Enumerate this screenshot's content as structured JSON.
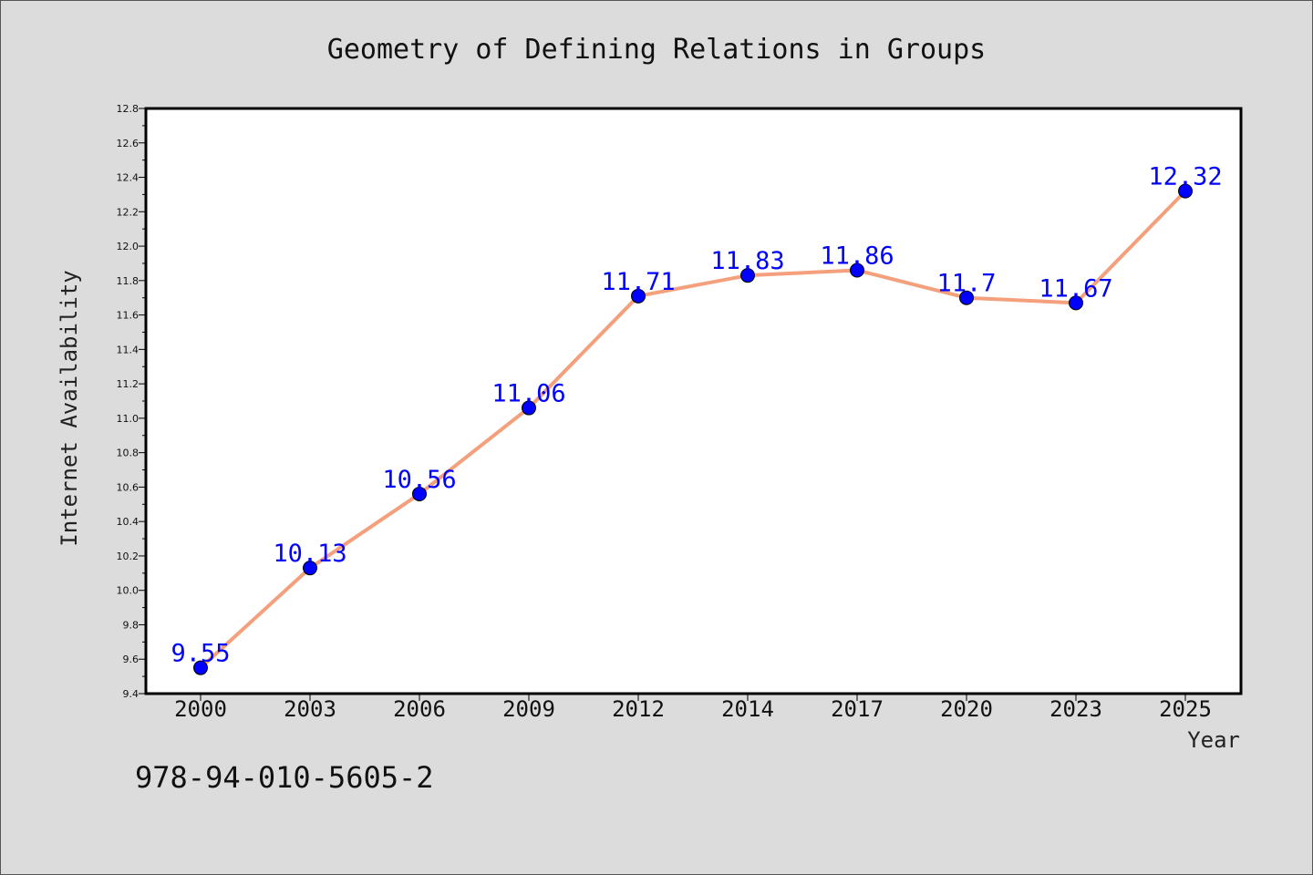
{
  "chart_data": {
    "type": "line",
    "title": "Geometry of Defining Relations in Groups",
    "xlabel": "Year",
    "ylabel": "Internet Availability",
    "categories": [
      "2000",
      "2003",
      "2006",
      "2009",
      "2012",
      "2014",
      "2017",
      "2020",
      "2023",
      "2025"
    ],
    "series": [
      {
        "values": [
          9.55,
          10.13,
          10.56,
          11.06,
          11.71,
          11.83,
          11.86,
          11.7,
          11.67,
          12.32
        ]
      }
    ],
    "data_labels": [
      "9.55",
      "10.13",
      "10.56",
      "11.06",
      "11.71",
      "11.83",
      "11.86",
      "11.7",
      "11.67",
      "12.32"
    ],
    "ylim": [
      9.4,
      12.8
    ],
    "yticks": [
      "9.4",
      "9.6",
      "9.8",
      "10.0",
      "10.2",
      "10.4",
      "10.6",
      "10.8",
      "11.0",
      "11.2",
      "11.4",
      "11.6",
      "11.8",
      "12.0",
      "12.2",
      "12.4",
      "12.6",
      "12.8"
    ],
    "grid": false,
    "colors": {
      "line": "#f4a07c",
      "marker": "#0000ff",
      "label": "#0000ff",
      "background": "#dcdcdc",
      "plot_background": "#ffffff"
    }
  },
  "footer": {
    "text": "978-94-010-5605-2"
  }
}
